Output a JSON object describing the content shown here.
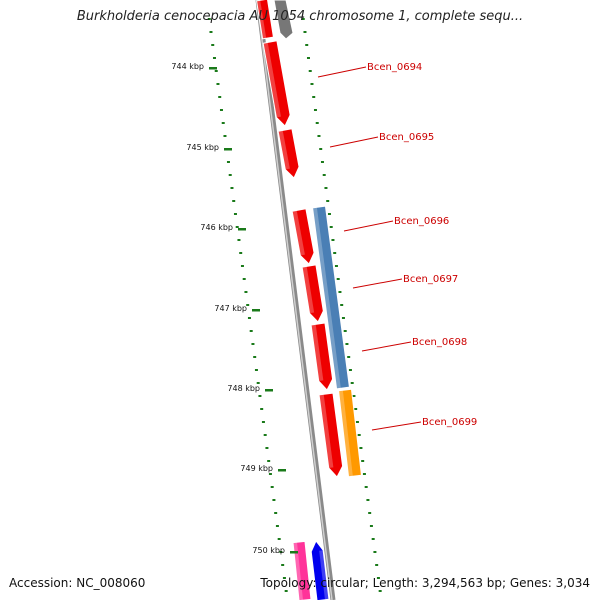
{
  "title": "Burkholderia cenocepacia AU 1054 chromosome 1, complete sequ...",
  "accession_text": "Accession: NC_008060",
  "topology_text": "Topology: circular; Length: 3,294,563 bp; Genes: 3,034",
  "colors": {
    "forward_cds": "#ee0000",
    "reverse_cds": "#4a7fb5",
    "rna": "#ff9900",
    "pink_feature": "#ff3399",
    "blue_feature": "#0000ee",
    "gray_feature": "#777777",
    "tick": "#1a7a1a",
    "label": "#cc0000",
    "backbone": "#888888"
  },
  "scale": {
    "ticks": [
      {
        "label": "744 kbp"
      },
      {
        "label": "745 kbp"
      },
      {
        "label": "746 kbp"
      },
      {
        "label": "747 kbp"
      },
      {
        "label": "748 kbp"
      },
      {
        "label": "749 kbp"
      },
      {
        "label": "750 kbp"
      }
    ]
  },
  "gene_labels": [
    {
      "label": "Bcen_0694"
    },
    {
      "label": "Bcen_0695"
    },
    {
      "label": "Bcen_0696"
    },
    {
      "label": "Bcen_0697"
    },
    {
      "label": "Bcen_0698"
    },
    {
      "label": "Bcen_0699"
    }
  ]
}
